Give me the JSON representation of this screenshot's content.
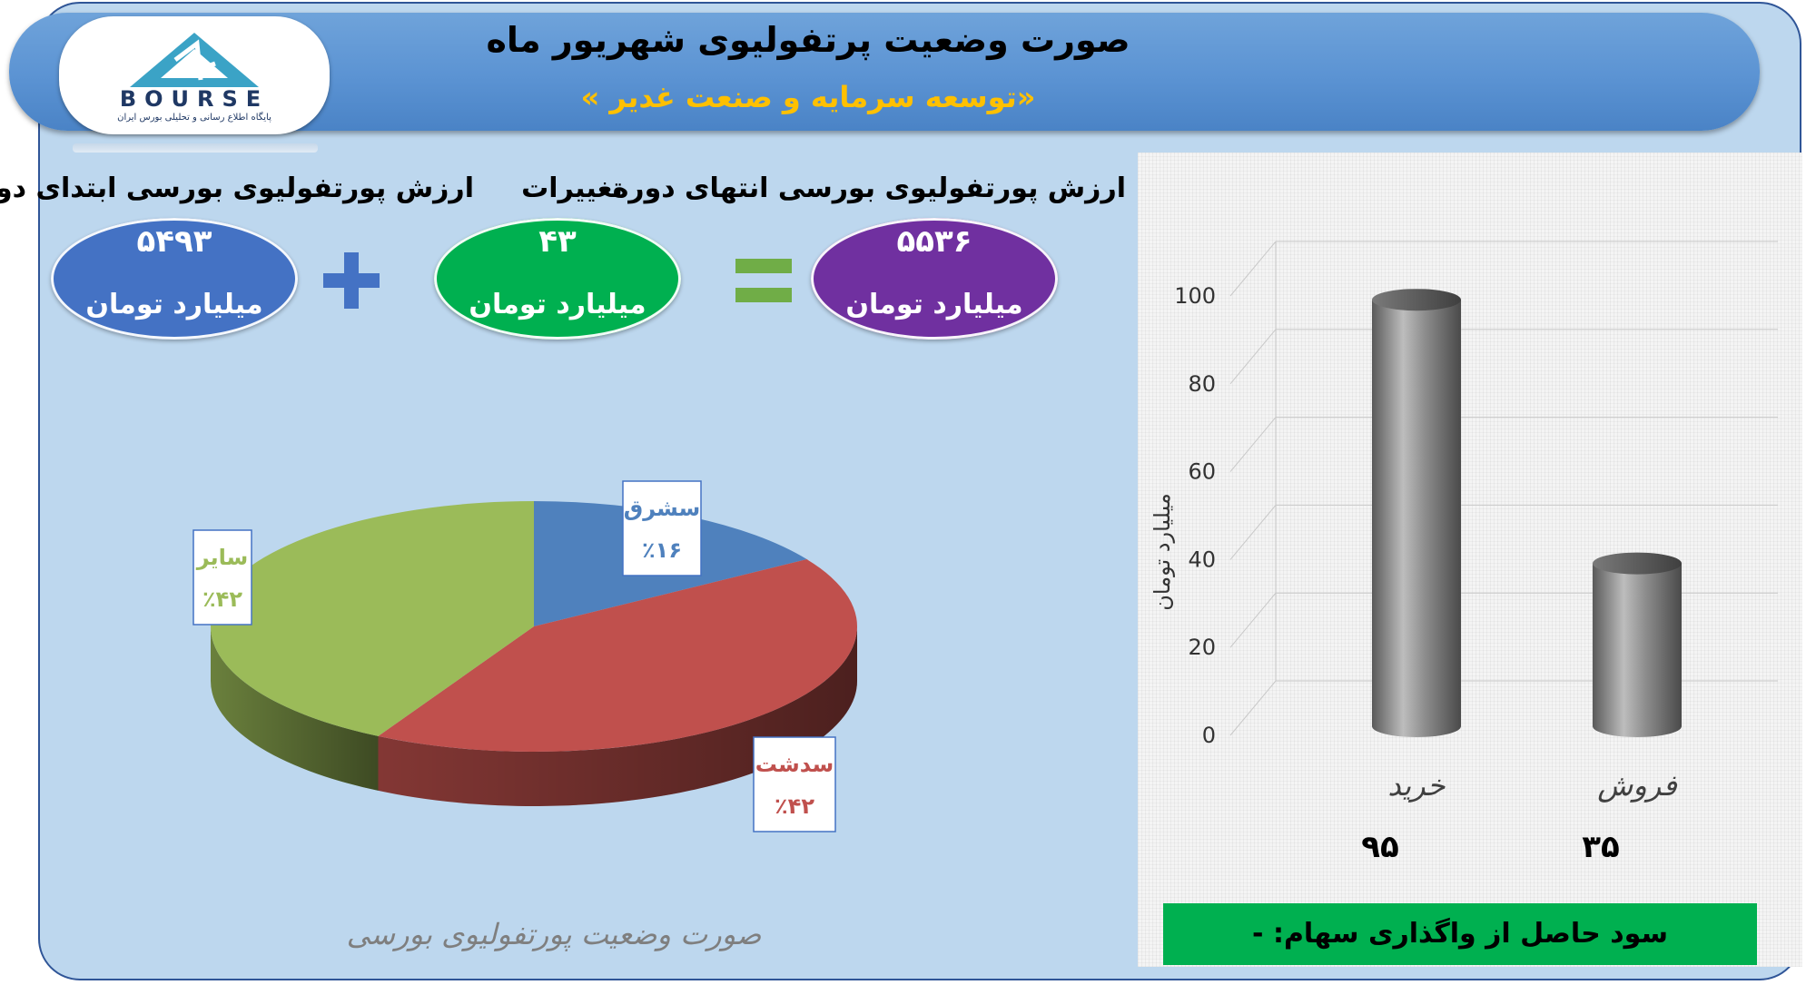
{
  "header": {
    "title": "صورت وضعیت پرتفولیوی شهریور ماه",
    "subtitle": "«توسعه سرمایه و صنعت غدیر »"
  },
  "logo": {
    "brand": "BOURSE",
    "tagline": "پایگاه اطلاع رسانی و تحلیلی بورس ایران"
  },
  "summary": {
    "start": {
      "label": "ارزش پورتفولیوی بورسی ابتدای دوره",
      "value": "۵۴۹۳",
      "unit": "میلیارد تومان",
      "color": "#4472c4"
    },
    "change": {
      "label": "تغییرات",
      "value": "۴۳",
      "unit": "میلیارد تومان",
      "color": "#00b050"
    },
    "end": {
      "label": "ارزش پورتفولیوی بورسی انتهای دوره",
      "value": "۵۵۳۶",
      "unit": "میلیارد تومان",
      "color": "#7030a0"
    },
    "plus_color": "#4472c4",
    "equals_color": "#70ad47"
  },
  "chart_data": [
    {
      "type": "pie",
      "title": "صورت وضعیت پورتفولیوی بورسی",
      "slices": [
        {
          "name": "سشرق",
          "value": 16,
          "label": "٪۱۶",
          "color": "#4f81bd"
        },
        {
          "name": "سدشت",
          "value": 42,
          "label": "٪۴۲",
          "color": "#c0504d"
        },
        {
          "name": "سایر",
          "value": 42,
          "label": "٪۴۲",
          "color": "#9bbb59"
        }
      ]
    },
    {
      "type": "bar",
      "categories": [
        "خرید",
        "فروش"
      ],
      "values": [
        95,
        35
      ],
      "value_labels": [
        "۹۵",
        "۳۵"
      ],
      "ylabel": "میلیارد تومان",
      "ylim": [
        0,
        100
      ],
      "yticks": [
        "0",
        "20",
        "40",
        "60",
        "80",
        "100"
      ],
      "grid": true,
      "bar_color": "#808080"
    }
  ],
  "profit": "سود حاصل از واگذاری سهام: -"
}
